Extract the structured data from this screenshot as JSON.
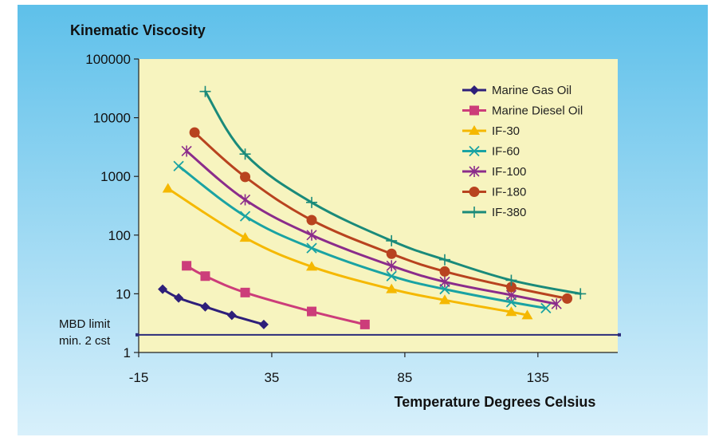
{
  "chart_data": {
    "type": "line",
    "title": "Kinematic Viscosity",
    "xlabel": "Temperature Degrees Celsius",
    "ylabel": "Kinematic Viscosity",
    "yscale": "log",
    "xlim": [
      -15,
      165
    ],
    "ylim": [
      1,
      100000
    ],
    "xticks": [
      "-15",
      "35",
      "85",
      "135"
    ],
    "yticks": [
      "1",
      "10",
      "100",
      "1000",
      "10000",
      "100000"
    ],
    "annotation": {
      "line1": "MBD limit",
      "line2": "min. 2 cst",
      "value": 2,
      "color": "#2b2b7a"
    },
    "series": [
      {
        "name": "Marine Gas Oil",
        "color": "#2e1f7a",
        "marker": "diamond",
        "x": [
          -6,
          0,
          10,
          20,
          32
        ],
        "y": [
          12,
          8.5,
          6,
          4.3,
          3
        ]
      },
      {
        "name": "Marine Diesel Oil",
        "color": "#cc3d7a",
        "marker": "square",
        "x": [
          3,
          10,
          25,
          50,
          70
        ],
        "y": [
          30,
          20,
          10.5,
          5,
          3
        ]
      },
      {
        "name": "IF-30",
        "color": "#f5b800",
        "marker": "triangle",
        "x": [
          -4,
          25,
          50,
          80,
          100,
          125,
          131
        ],
        "y": [
          620,
          90,
          29,
          12,
          7.8,
          4.9,
          4.3
        ]
      },
      {
        "name": "IF-60",
        "color": "#1aa3a3",
        "marker": "x",
        "x": [
          0,
          25,
          50,
          80,
          100,
          125,
          138
        ],
        "y": [
          1500,
          210,
          60,
          20,
          12,
          7.2,
          5.7
        ]
      },
      {
        "name": "IF-100",
        "color": "#8b2c8b",
        "marker": "star",
        "x": [
          3,
          25,
          50,
          80,
          100,
          125,
          142
        ],
        "y": [
          2700,
          400,
          100,
          30,
          16,
          9.5,
          6.7
        ]
      },
      {
        "name": "IF-180",
        "color": "#b8431f",
        "marker": "circle",
        "x": [
          6,
          25,
          50,
          80,
          100,
          125,
          146
        ],
        "y": [
          5600,
          980,
          180,
          48,
          24,
          13,
          8.3
        ]
      },
      {
        "name": "IF-380",
        "color": "#1a8a7a",
        "marker": "plus",
        "x": [
          10,
          25,
          50,
          80,
          100,
          125,
          151
        ],
        "y": [
          28000,
          2400,
          360,
          80,
          38,
          17,
          10
        ]
      }
    ]
  }
}
